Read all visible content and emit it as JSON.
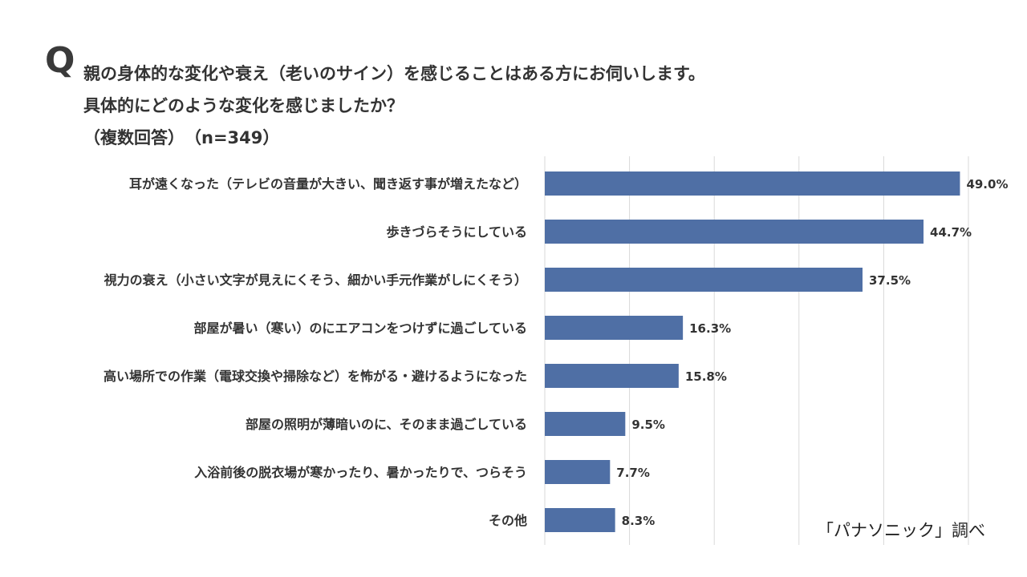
{
  "header": {
    "q_letter": "Q",
    "question_line1": "親の身体的な変化や衰え（老いのサイン）を感じることはある方にお伺いします。",
    "question_line2": "具体的にどのような変化を感じましたか？",
    "question_line3": "（複数回答）　（n=349）"
  },
  "source": "「パナソニック」調べ",
  "colors": {
    "bar": "#4f6fa5",
    "grid": "#d9d9d9"
  },
  "chart_data": {
    "type": "bar",
    "orientation": "horizontal",
    "categories": [
      "耳が遠くなった（テレビの音量が大きい、聞き返す事が増えたなど）",
      "歩きづらそうにしている",
      "視力の衰え（小さい文字が見えにくそう、細かい手元作業がしにくそう）",
      "部屋が暑い（寒い）のにエアコンをつけずに過ごしている",
      "高い場所での作業（電球交換や掃除など）を怖がる・避けるようになった",
      "部屋の照明が薄暗いのに、そのまま過ごしている",
      "入浴前後の脱衣場が寒かったり、暑かったりで、つらそう",
      "その他"
    ],
    "values": [
      49.0,
      44.7,
      37.5,
      16.3,
      15.8,
      9.5,
      7.7,
      8.3
    ],
    "value_labels": [
      "49.0%",
      "44.7%",
      "37.5%",
      "16.3%",
      "15.8%",
      "9.5%",
      "7.7%",
      "8.3%"
    ],
    "unit": "%",
    "xlim": [
      0,
      50
    ],
    "grid": true
  }
}
